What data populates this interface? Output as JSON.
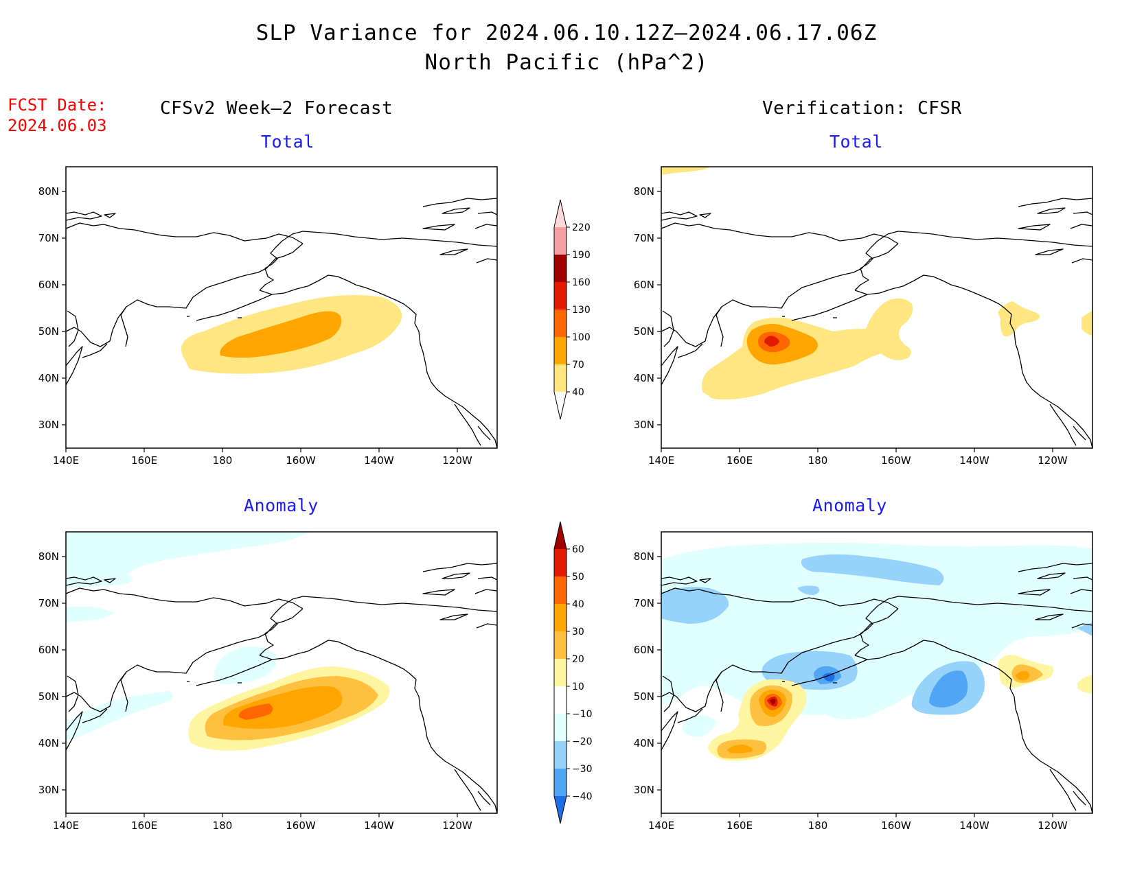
{
  "figure": {
    "title_line1": "SLP Variance for 2024.06.10.12Z–2024.06.17.06Z",
    "title_line2": "North Pacific (hPa^2)",
    "fcst_label": "FCST Date:",
    "fcst_date": "2024.06.03",
    "left_column_title": "CFSv2 Week–2 Forecast",
    "right_column_title": "Verification: CFSR"
  },
  "panels": [
    {
      "id": "forecast-total",
      "subtitle": "Total"
    },
    {
      "id": "verification-total",
      "subtitle": "Total"
    },
    {
      "id": "forecast-anomaly",
      "subtitle": "Anomaly"
    },
    {
      "id": "verification-anomaly",
      "subtitle": "Anomaly"
    }
  ],
  "axes": {
    "lon_ticks": [
      "140E",
      "160E",
      "180",
      "160W",
      "140W",
      "120W"
    ],
    "lat_ticks": [
      "80N",
      "70N",
      "60N",
      "50N",
      "40N",
      "30N"
    ]
  },
  "colorbars": {
    "total": {
      "levels": [
        "40",
        "70",
        "100",
        "130",
        "160",
        "190",
        "220"
      ],
      "colors": [
        "#ffe680",
        "#ffa500",
        "#ff6600",
        "#e31a00",
        "#a00000",
        "#f4a0a0",
        "#ffd8d8"
      ]
    },
    "anomaly": {
      "levels": [
        "60",
        "50",
        "40",
        "30",
        "20",
        "10",
        "−10",
        "−20",
        "−30",
        "−40"
      ],
      "colors": [
        "#a00000",
        "#e31a00",
        "#ff6600",
        "#ffa500",
        "#ffc040",
        "#fff5a0",
        "#ffffff",
        "#e0ffff",
        "#96d2fa",
        "#50a5f5",
        "#1e6ee6"
      ]
    }
  }
}
